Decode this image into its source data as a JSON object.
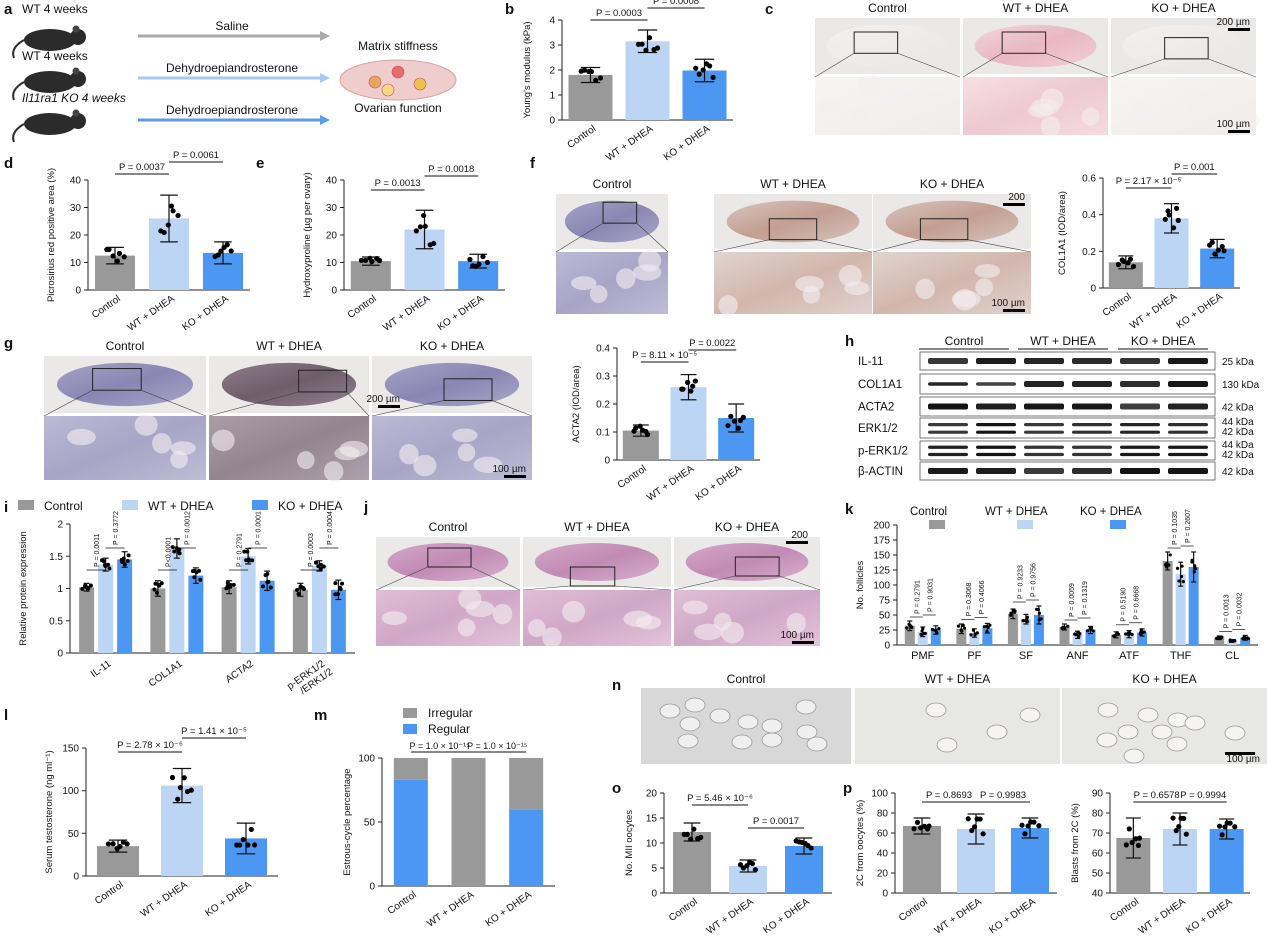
{
  "colors": {
    "control": "#999999",
    "wt": "#bcd5f5",
    "ko": "#4c97f2",
    "arrowGray": "#aaaaaa",
    "arrowLight": "#a9c9ef",
    "arrowBlue": "#5b9be8"
  },
  "panel_labels": [
    "a",
    "b",
    "c",
    "d",
    "e",
    "f",
    "g",
    "h",
    "i",
    "j",
    "k",
    "l",
    "m",
    "n",
    "o",
    "p"
  ],
  "schematic": {
    "groups": [
      "WT 4 weeks",
      "WT 4 weeks",
      "Il11ra1 KO 4 weeks"
    ],
    "treatments": [
      "Saline",
      "Dehydroepiandrosterone",
      "Dehydroepiandrosterone"
    ],
    "outcome_top": "Matrix stiffness",
    "outcome_bottom": "Ovarian function"
  },
  "micrographs": {
    "c": {
      "titles": [
        "Control",
        "WT + DHEA",
        "KO + DHEA"
      ],
      "scale_top": "200 µm",
      "scale_bottom": "100 µm"
    },
    "f": {
      "titles": [
        "Control",
        "WT + DHEA",
        "KO + DHEA"
      ],
      "scale_top": "200",
      "scale_bottom": "100 µm"
    },
    "g": {
      "titles": [
        "Control",
        "WT + DHEA",
        "KO + DHEA"
      ],
      "scale_top": "200 µm",
      "scale_bottom": "100 µm"
    },
    "j": {
      "titles": [
        "Control",
        "WT + DHEA",
        "KO + DHEA"
      ],
      "scale_top": "200",
      "scale_bottom": "100 µm"
    },
    "n": {
      "titles": [
        "Control",
        "WT + DHEA",
        "KO + DHEA"
      ],
      "scale_bottom": "100 µm"
    }
  },
  "western": {
    "titles": [
      "Control",
      "WT + DHEA",
      "KO + DHEA"
    ],
    "rows": [
      {
        "name": "IL-11",
        "kda": [
          "25 kDa"
        ]
      },
      {
        "name": "COL1A1",
        "kda": [
          "130 kDa"
        ]
      },
      {
        "name": "ACTA2",
        "kda": [
          "42 kDa"
        ]
      },
      {
        "name": "ERK1/2",
        "kda": [
          "44 kDa",
          "42 kDa"
        ]
      },
      {
        "name": "p-ERK1/2",
        "kda": [
          "44 kDa",
          "42 kDa"
        ]
      },
      {
        "name": "β-ACTIN",
        "kda": [
          "42 kDa"
        ]
      }
    ]
  },
  "chart_data": [
    {
      "id": "b",
      "type": "bar",
      "categories": [
        "Control",
        "WT + DHEA",
        "KO + DHEA"
      ],
      "values": [
        1.8,
        3.15,
        1.98
      ],
      "errors": [
        0.3,
        0.45,
        0.45
      ],
      "ylabel": "Young's modulus (kPa)",
      "ylim": [
        0,
        4
      ],
      "yticks": [
        0,
        1,
        2,
        3,
        4
      ],
      "annotations": [
        "P = 0.0003",
        "P = 0.0008"
      ]
    },
    {
      "id": "d",
      "type": "bar",
      "categories": [
        "Control",
        "WT + DHEA",
        "KO + DHEA"
      ],
      "values": [
        12.5,
        26,
        13.5
      ],
      "errors": [
        3,
        8.5,
        4
      ],
      "ylabel": "Picrosirius red positive area (%)",
      "ylim": [
        0,
        40
      ],
      "yticks": [
        0,
        10,
        20,
        30,
        40
      ],
      "annotations": [
        "P = 0.0037",
        "P = 0.0061"
      ]
    },
    {
      "id": "e",
      "type": "bar",
      "categories": [
        "Control",
        "WT + DHEA",
        "KO + DHEA"
      ],
      "values": [
        10.5,
        22,
        10.5
      ],
      "errors": [
        1.5,
        7,
        2.5
      ],
      "ylabel": "Hydroxyproline (µg per ovary)",
      "ylim": [
        0,
        40
      ],
      "yticks": [
        0,
        10,
        20,
        30,
        40
      ],
      "annotations": [
        "P = 0.0013",
        "P = 0.0018"
      ]
    },
    {
      "id": "f",
      "type": "bar",
      "categories": [
        "Control",
        "WT + DHEA",
        "KO + DHEA"
      ],
      "values": [
        0.14,
        0.38,
        0.215
      ],
      "errors": [
        0.035,
        0.08,
        0.05
      ],
      "ylabel": "COL1A1 (IOD/area)",
      "ylim": [
        0,
        0.6
      ],
      "yticks": [
        0,
        0.2,
        0.4,
        0.6
      ],
      "annotations": [
        "P = 2.17 × 10⁻⁵",
        "P = 0.001"
      ]
    },
    {
      "id": "g",
      "type": "bar",
      "categories": [
        "Control",
        "WT + DHEA",
        "KO + DHEA"
      ],
      "values": [
        0.105,
        0.26,
        0.15
      ],
      "errors": [
        0.02,
        0.045,
        0.05
      ],
      "ylabel": "ACTA2 (IOD/area)",
      "ylim": [
        0,
        0.4
      ],
      "yticks": [
        0,
        0.1,
        0.2,
        0.3,
        0.4
      ],
      "annotations": [
        "P = 8.11 × 10⁻⁵",
        "P = 0.0022"
      ]
    },
    {
      "id": "i",
      "type": "bar",
      "categories": [
        "IL-11",
        "COL1A1",
        "ACTA2",
        "p-ERK1/2 /ERK1/2"
      ],
      "series": [
        {
          "name": "Control",
          "values": [
            1.02,
            1.0,
            1.02,
            0.98
          ],
          "errors": [
            0.06,
            0.12,
            0.1,
            0.1
          ]
        },
        {
          "name": "WT + DHEA",
          "values": [
            1.37,
            1.62,
            1.5,
            1.35
          ],
          "errors": [
            0.1,
            0.15,
            0.12,
            0.08
          ]
        },
        {
          "name": "KO + DHEA",
          "values": [
            1.45,
            1.2,
            1.12,
            0.98
          ],
          "errors": [
            0.12,
            0.12,
            0.15,
            0.15
          ]
        }
      ],
      "ylabel": "Relative protein expression",
      "ylim": [
        0,
        2
      ],
      "yticks": [
        0,
        0.5,
        1.0,
        1.5,
        2.0
      ],
      "annotations": [
        "P = 0.0011",
        "P = 0.3772",
        "P<0.0001",
        "P = 0.0012",
        "P = 0.2791",
        "P = 0.0001",
        "P = 0.0003",
        "P = 0.0004"
      ]
    },
    {
      "id": "k",
      "type": "bar",
      "categories": [
        "PMF",
        "PF",
        "SF",
        "ANF",
        "ATF",
        "THF",
        "CL"
      ],
      "series": [
        {
          "name": "Control",
          "values": [
            32,
            27,
            52,
            30,
            17,
            140,
            12
          ],
          "errors": [
            8,
            8,
            8,
            5,
            5,
            15,
            3
          ]
        },
        {
          "name": "WT + DHEA",
          "values": [
            22,
            20,
            43,
            17,
            18,
            118,
            7
          ],
          "errors": [
            8,
            7,
            8,
            6,
            6,
            20,
            2
          ]
        },
        {
          "name": "KO + DHEA",
          "values": [
            25,
            28,
            50,
            25,
            21,
            130,
            12
          ],
          "errors": [
            7,
            8,
            15,
            6,
            6,
            25,
            4
          ]
        }
      ],
      "ylabel": "No. follicles",
      "ylim": [
        0,
        200
      ],
      "yticks": [
        0,
        25,
        50,
        75,
        100,
        125,
        150,
        175,
        200
      ],
      "annotations": [
        "P = 0.2791",
        "P = 0.9031",
        "P = 0.3068",
        "P = 0.4066",
        "P = 0.9233",
        "P = 0.9756",
        "P = 0.0059",
        "P = 0.1319",
        "P = 0.5190",
        "P = 0.6668",
        "P = 0.1035",
        "P = 0.2607",
        "P = 0.0013",
        "P = 0.0032"
      ]
    },
    {
      "id": "l",
      "type": "bar",
      "categories": [
        "Control",
        "WT + DHEA",
        "KO + DHEA"
      ],
      "values": [
        35,
        106,
        44
      ],
      "errors": [
        7,
        20,
        18
      ],
      "ylabel": "Serum testosterone (ng ml⁻¹)",
      "ylim": [
        0,
        150
      ],
      "yticks": [
        0,
        50,
        100,
        150
      ],
      "annotations": [
        "P = 2.78 × 10⁻⁶",
        "P = 1.41 × 10⁻⁵"
      ]
    },
    {
      "id": "m",
      "type": "bar",
      "stacked": true,
      "categories": [
        "Control",
        "WT + DHEA",
        "KO + DHEA"
      ],
      "series": [
        {
          "name": "Regular",
          "values": [
            83,
            0,
            60
          ]
        },
        {
          "name": "Irregular",
          "values": [
            17,
            100,
            40
          ]
        }
      ],
      "ylabel": "Estrous-cycle percentage",
      "ylim": [
        0,
        100
      ],
      "yticks": [
        0,
        50,
        100
      ],
      "annotations": [
        "P = 1.0 × 10⁻¹⁵",
        "P = 1.0 × 10⁻¹⁵"
      ]
    },
    {
      "id": "o",
      "type": "bar",
      "categories": [
        "Control",
        "WT + DHEA",
        "KO + DHEA"
      ],
      "values": [
        12.2,
        5.4,
        9.4
      ],
      "errors": [
        1.8,
        1.2,
        1.6
      ],
      "ylabel": "No. MII oocytes",
      "ylim": [
        0,
        20
      ],
      "yticks": [
        0,
        5,
        10,
        15,
        20
      ],
      "annotations": [
        "P = 5.46 × 10⁻⁶",
        "P = 0.0017"
      ]
    },
    {
      "id": "p1",
      "type": "bar",
      "categories": [
        "Control",
        "WT + DHEA",
        "KO + DHEA"
      ],
      "values": [
        67,
        64,
        65
      ],
      "errors": [
        8,
        15,
        10
      ],
      "ylabel": "2C from oocytes (%)",
      "ylim": [
        0,
        100
      ],
      "yticks": [
        0,
        20,
        40,
        60,
        80,
        100
      ],
      "annotations": [
        "P = 0.8693",
        "P = 0.9983"
      ]
    },
    {
      "id": "p2",
      "type": "bar",
      "categories": [
        "Control",
        "WT + DHEA",
        "KO + DHEA"
      ],
      "values": [
        67.5,
        72,
        72
      ],
      "errors": [
        10,
        8,
        5
      ],
      "ylabel": "Blasts from 2C (%)",
      "ylim": [
        40,
        90
      ],
      "yticks": [
        40,
        50,
        60,
        70,
        80,
        90
      ],
      "annotations": [
        "P = 0.6578",
        "P = 0.9994"
      ]
    }
  ]
}
